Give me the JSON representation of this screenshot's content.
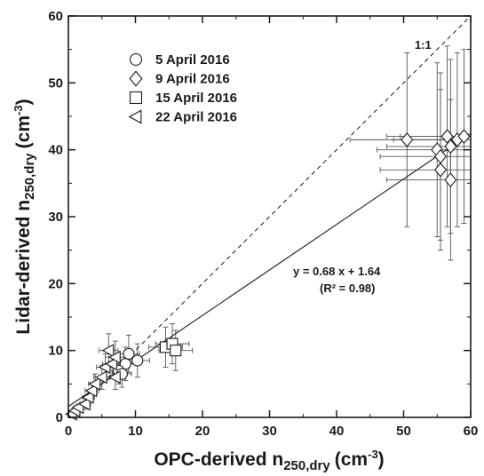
{
  "chart_data": {
    "type": "scatter",
    "xlabel": {
      "main": "OPC-derived n",
      "sub": "250,dry",
      "unit_pre": "(cm",
      "unit_sup": "-3",
      "unit_post": ")"
    },
    "ylabel": {
      "main": "Lidar-derived n",
      "sub": "250,dry",
      "unit_pre": "(cm",
      "unit_sup": "-3",
      "unit_post": ")"
    },
    "xlim": [
      0,
      60
    ],
    "ylim": [
      0,
      60
    ],
    "xticks": [
      "0",
      "10",
      "20",
      "30",
      "40",
      "50",
      "60"
    ],
    "yticks": [
      "0",
      "10",
      "20",
      "30",
      "40",
      "50",
      "60"
    ],
    "grid": false,
    "legend_placement": "top-left",
    "one_to_one_label": "1:1",
    "fit": {
      "slope": 0.68,
      "intercept": 1.64,
      "equation": "y = 0.68 x + 1.64",
      "r2_text": "(R² = 0.98)"
    },
    "series": [
      {
        "name": "5 April 2016",
        "marker": "circle",
        "points": [
          {
            "x": 8.5,
            "y": 8.0,
            "xerr": 1.6,
            "yerr": 2.5
          },
          {
            "x": 9.0,
            "y": 9.5,
            "xerr": 1.6,
            "yerr": 2.8
          },
          {
            "x": 10.3,
            "y": 8.5,
            "xerr": 1.8,
            "yerr": 2.5
          },
          {
            "x": 7.5,
            "y": 7.0,
            "xerr": 1.5,
            "yerr": 2.0
          },
          {
            "x": 8.0,
            "y": 6.5,
            "xerr": 1.4,
            "yerr": 2.0
          }
        ]
      },
      {
        "name": "9 April 2016",
        "marker": "diamond",
        "points": [
          {
            "x": 50.5,
            "y": 41.5,
            "xerr": 8.5,
            "yerr": 13.0
          },
          {
            "x": 55.0,
            "y": 40.0,
            "xerr": 9.0,
            "yerr": 13.0
          },
          {
            "x": 55.5,
            "y": 39.0,
            "xerr": 9.0,
            "yerr": 12.5
          },
          {
            "x": 55.5,
            "y": 37.0,
            "xerr": 9.0,
            "yerr": 12.0
          },
          {
            "x": 56.5,
            "y": 42.0,
            "xerr": 9.0,
            "yerr": 13.5
          },
          {
            "x": 57.0,
            "y": 40.5,
            "xerr": 9.5,
            "yerr": 13.0
          },
          {
            "x": 57.0,
            "y": 35.5,
            "xerr": 9.5,
            "yerr": 12.0
          },
          {
            "x": 58.0,
            "y": 41.5,
            "xerr": 9.5,
            "yerr": 13.0
          },
          {
            "x": 59.0,
            "y": 42.0,
            "xerr": 9.5,
            "yerr": 13.0
          }
        ]
      },
      {
        "name": "15 April 2016",
        "marker": "square",
        "points": [
          {
            "x": 14.5,
            "y": 10.5,
            "xerr": 2.5,
            "yerr": 3.0
          },
          {
            "x": 15.5,
            "y": 11.0,
            "xerr": 2.5,
            "yerr": 3.0
          },
          {
            "x": 16.0,
            "y": 10.0,
            "xerr": 2.5,
            "yerr": 3.0
          }
        ]
      },
      {
        "name": "22 April 2016",
        "marker": "triangle-left",
        "points": [
          {
            "x": 0.5,
            "y": 0.5,
            "xerr": 0.4,
            "yerr": 0.3
          },
          {
            "x": 1.0,
            "y": 1.0,
            "xerr": 0.5,
            "yerr": 0.4
          },
          {
            "x": 1.5,
            "y": 1.5,
            "xerr": 0.6,
            "yerr": 0.5
          },
          {
            "x": 2.5,
            "y": 2.0,
            "xerr": 0.8,
            "yerr": 0.8
          },
          {
            "x": 3.0,
            "y": 3.0,
            "xerr": 0.9,
            "yerr": 1.0
          },
          {
            "x": 3.5,
            "y": 4.0,
            "xerr": 1.0,
            "yerr": 1.2
          },
          {
            "x": 4.0,
            "y": 5.0,
            "xerr": 1.0,
            "yerr": 1.5
          },
          {
            "x": 5.0,
            "y": 6.0,
            "xerr": 1.2,
            "yerr": 1.8
          },
          {
            "x": 5.5,
            "y": 7.5,
            "xerr": 1.3,
            "yerr": 2.0
          },
          {
            "x": 6.5,
            "y": 8.0,
            "xerr": 1.4,
            "yerr": 2.2
          },
          {
            "x": 6.0,
            "y": 10.0,
            "xerr": 1.4,
            "yerr": 2.5
          },
          {
            "x": 7.0,
            "y": 9.0,
            "xerr": 1.5,
            "yerr": 2.4
          },
          {
            "x": 7.0,
            "y": 6.0,
            "xerr": 1.5,
            "yerr": 1.8
          }
        ]
      }
    ]
  }
}
